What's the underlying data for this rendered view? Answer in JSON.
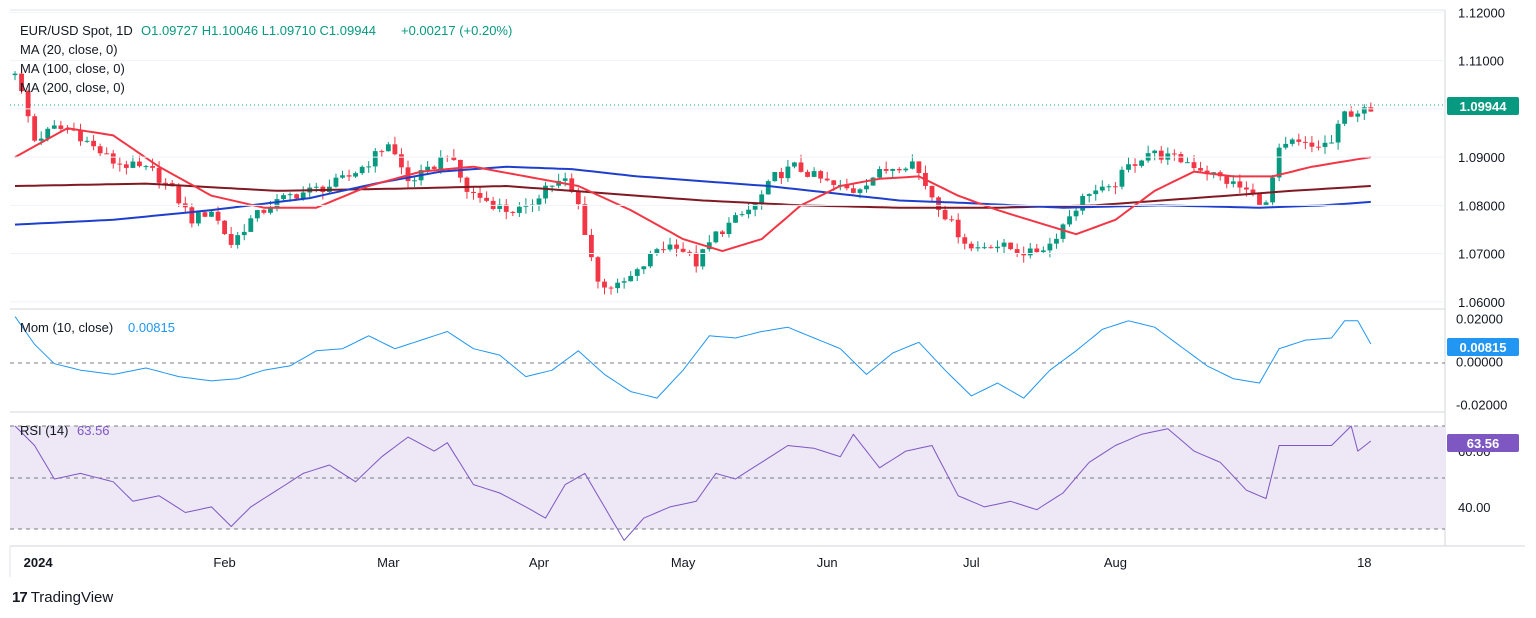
{
  "header": {
    "symbol": "EUR/USD Spot, 1D",
    "ohlc": "O1.09727  H1.10046  L1.09710  C1.09944",
    "change": "+0.00217 (+0.20%)",
    "ma20_label": "MA (20, close, 0)",
    "ma100_label": "MA (100, close, 0)",
    "ma200_label": "MA (200, close, 0)"
  },
  "momentum": {
    "label": "Mom (10, close)",
    "value": "0.00815"
  },
  "rsi": {
    "label": "RSI (14)",
    "value": "63.56"
  },
  "branding": {
    "logo_text": "TradingView",
    "logo_icon": "tradingview-logo-icon"
  },
  "colors": {
    "up": "#089981",
    "down": "#f23645",
    "ma20": "#f23645",
    "ma100": "#1e3fcc",
    "ma200": "#801922",
    "mom": "#2196f3",
    "rsi": "#7e57c2",
    "rsi_band": "#ede7f6",
    "last_price_tag": "#089981",
    "mom_tag": "#2196f3",
    "rsi_tag": "#7e57c2"
  },
  "chart_data": [
    {
      "type": "candlestick",
      "title": "EUR/USD Spot, 1D",
      "y_ticks": [
        "1.12000",
        "1.11000",
        "1.10000",
        "1.09000",
        "1.08000",
        "1.07000",
        "1.06000"
      ],
      "ylim": [
        1.0585,
        1.1205
      ],
      "x_ticks": [
        "2024",
        "Feb",
        "Mar",
        "Apr",
        "May",
        "Jun",
        "Jul",
        "Aug",
        "18"
      ],
      "last_price": "1.09944",
      "close_anchors": [
        [
          0,
          1.108
        ],
        [
          3,
          1.0935
        ],
        [
          6,
          1.096
        ],
        [
          9,
          1.0955
        ],
        [
          12,
          1.092
        ],
        [
          15,
          1.089
        ],
        [
          18,
          1.088
        ],
        [
          21,
          1.087
        ],
        [
          24,
          1.083
        ],
        [
          27,
          1.077
        ],
        [
          30,
          1.079
        ],
        [
          33,
          1.072
        ],
        [
          36,
          1.077
        ],
        [
          39,
          1.08
        ],
        [
          42,
          1.082
        ],
        [
          45,
          1.083
        ],
        [
          48,
          1.084
        ],
        [
          51,
          1.086
        ],
        [
          54,
          1.089
        ],
        [
          57,
          1.093
        ],
        [
          60,
          1.085
        ],
        [
          63,
          1.087
        ],
        [
          66,
          1.091
        ],
        [
          69,
          1.083
        ],
        [
          72,
          1.081
        ],
        [
          75,
          1.079
        ],
        [
          78,
          1.079
        ],
        [
          81,
          1.084
        ],
        [
          84,
          1.085
        ],
        [
          86,
          1.08
        ],
        [
          89,
          1.064
        ],
        [
          92,
          1.063
        ],
        [
          95,
          1.066
        ],
        [
          98,
          1.071
        ],
        [
          101,
          1.072
        ],
        [
          104,
          1.068
        ],
        [
          107,
          1.074
        ],
        [
          110,
          1.077
        ],
        [
          113,
          1.08
        ],
        [
          116,
          1.086
        ],
        [
          119,
          1.088
        ],
        [
          122,
          1.086
        ],
        [
          125,
          1.084
        ],
        [
          128,
          1.083
        ],
        [
          131,
          1.086
        ],
        [
          134,
          1.088
        ],
        [
          137,
          1.089
        ],
        [
          140,
          1.082
        ],
        [
          143,
          1.076
        ],
        [
          146,
          1.071
        ],
        [
          149,
          1.072
        ],
        [
          152,
          1.071
        ],
        [
          155,
          1.07
        ],
        [
          158,
          1.072
        ],
        [
          161,
          1.078
        ],
        [
          164,
          1.083
        ],
        [
          167,
          1.083
        ],
        [
          170,
          1.088
        ],
        [
          173,
          1.091
        ],
        [
          176,
          1.09
        ],
        [
          179,
          1.089
        ],
        [
          182,
          1.087
        ],
        [
          185,
          1.085
        ],
        [
          188,
          1.083
        ],
        [
          191,
          1.08
        ],
        [
          193,
          1.091
        ],
        [
          195,
          1.093
        ],
        [
          198,
          1.092
        ],
        [
          201,
          1.093
        ],
        [
          203,
          1.099
        ],
        [
          205,
          1.0995
        ],
        [
          207,
          1.0994
        ]
      ],
      "ma_anchors": {
        "ma20": [
          [
            0,
            1.09
          ],
          [
            8,
            1.096
          ],
          [
            15,
            1.0945
          ],
          [
            22,
            1.088
          ],
          [
            30,
            1.082
          ],
          [
            38,
            1.0795
          ],
          [
            46,
            1.0795
          ],
          [
            54,
            1.084
          ],
          [
            62,
            1.087
          ],
          [
            70,
            1.088
          ],
          [
            78,
            1.086
          ],
          [
            86,
            1.084
          ],
          [
            94,
            1.079
          ],
          [
            102,
            1.073
          ],
          [
            108,
            1.0705
          ],
          [
            114,
            1.073
          ],
          [
            120,
            1.08
          ],
          [
            126,
            1.084
          ],
          [
            132,
            1.0855
          ],
          [
            138,
            1.086
          ],
          [
            144,
            1.082
          ],
          [
            150,
            1.079
          ],
          [
            156,
            1.0765
          ],
          [
            162,
            1.074
          ],
          [
            168,
            1.077
          ],
          [
            174,
            1.083
          ],
          [
            180,
            1.087
          ],
          [
            186,
            1.086
          ],
          [
            192,
            1.086
          ],
          [
            198,
            1.088
          ],
          [
            207,
            1.09
          ]
        ],
        "ma100": [
          [
            0,
            1.076
          ],
          [
            15,
            1.077
          ],
          [
            30,
            1.079
          ],
          [
            45,
            1.0815
          ],
          [
            55,
            1.0845
          ],
          [
            65,
            1.087
          ],
          [
            75,
            1.088
          ],
          [
            85,
            1.0875
          ],
          [
            95,
            1.086
          ],
          [
            105,
            1.085
          ],
          [
            115,
            1.084
          ],
          [
            125,
            1.0825
          ],
          [
            135,
            1.081
          ],
          [
            145,
            1.0805
          ],
          [
            160,
            1.0795
          ],
          [
            175,
            1.08
          ],
          [
            190,
            1.0795
          ],
          [
            200,
            1.08
          ],
          [
            207,
            1.0807
          ]
        ],
        "ma200": [
          [
            0,
            1.084
          ],
          [
            20,
            1.0845
          ],
          [
            40,
            1.083
          ],
          [
            60,
            1.0835
          ],
          [
            75,
            1.084
          ],
          [
            90,
            1.0825
          ],
          [
            105,
            1.081
          ],
          [
            120,
            1.08
          ],
          [
            135,
            1.0795
          ],
          [
            150,
            1.0795
          ],
          [
            165,
            1.08
          ],
          [
            180,
            1.0815
          ],
          [
            195,
            1.083
          ],
          [
            207,
            1.084
          ]
        ]
      }
    },
    {
      "type": "line",
      "title": "Mom (10, close)",
      "y_ticks": [
        "0.02000",
        "0.00000",
        "-0.02000"
      ],
      "ylim": [
        -0.0235,
        0.0245
      ],
      "last_value": "0.00815",
      "anchors": [
        [
          0,
          0.021
        ],
        [
          3,
          0.008
        ],
        [
          6,
          -0.001
        ],
        [
          10,
          -0.004
        ],
        [
          15,
          -0.006
        ],
        [
          20,
          -0.003
        ],
        [
          25,
          -0.007
        ],
        [
          30,
          -0.009
        ],
        [
          34,
          -0.008
        ],
        [
          38,
          -0.004
        ],
        [
          42,
          -0.002
        ],
        [
          46,
          0.005
        ],
        [
          50,
          0.006
        ],
        [
          54,
          0.012
        ],
        [
          58,
          0.006
        ],
        [
          62,
          0.01
        ],
        [
          66,
          0.014
        ],
        [
          70,
          0.006
        ],
        [
          74,
          0.003
        ],
        [
          78,
          -0.007
        ],
        [
          82,
          -0.004
        ],
        [
          86,
          0.005
        ],
        [
          90,
          -0.006
        ],
        [
          94,
          -0.014
        ],
        [
          98,
          -0.017
        ],
        [
          102,
          -0.004
        ],
        [
          106,
          0.012
        ],
        [
          110,
          0.011
        ],
        [
          114,
          0.014
        ],
        [
          118,
          0.016
        ],
        [
          122,
          0.011
        ],
        [
          126,
          0.006
        ],
        [
          130,
          -0.006
        ],
        [
          134,
          0.004
        ],
        [
          138,
          0.009
        ],
        [
          142,
          -0.004
        ],
        [
          146,
          -0.016
        ],
        [
          150,
          -0.01
        ],
        [
          154,
          -0.017
        ],
        [
          158,
          -0.004
        ],
        [
          162,
          0.005
        ],
        [
          166,
          0.015
        ],
        [
          170,
          0.019
        ],
        [
          174,
          0.016
        ],
        [
          178,
          0.007
        ],
        [
          182,
          -0.002
        ],
        [
          186,
          -0.008
        ],
        [
          190,
          -0.01
        ],
        [
          193,
          0.006
        ],
        [
          197,
          0.01
        ],
        [
          201,
          0.011
        ],
        [
          203,
          0.019
        ],
        [
          205,
          0.019
        ],
        [
          207,
          0.0082
        ]
      ]
    },
    {
      "type": "line",
      "title": "RSI (14)",
      "y_ticks": [
        "60.00",
        "40.00"
      ],
      "ylim": [
        26.0,
        74.0
      ],
      "levels": [
        70,
        50,
        30
      ],
      "last_value": "63.56",
      "anchors": [
        [
          0,
          69.0
        ],
        [
          3,
          62.0
        ],
        [
          6,
          50.0
        ],
        [
          10,
          52.0
        ],
        [
          15,
          49.0
        ],
        [
          18,
          42.0
        ],
        [
          22,
          44.0
        ],
        [
          26,
          38.0
        ],
        [
          30,
          40.0
        ],
        [
          33,
          33.0
        ],
        [
          36,
          40.0
        ],
        [
          40,
          46.0
        ],
        [
          44,
          52.0
        ],
        [
          48,
          55.0
        ],
        [
          52,
          49.0
        ],
        [
          56,
          58.0
        ],
        [
          60,
          65.0
        ],
        [
          64,
          60.0
        ],
        [
          66,
          63.0
        ],
        [
          70,
          48.0
        ],
        [
          74,
          45.0
        ],
        [
          78,
          40.0
        ],
        [
          81,
          36.0
        ],
        [
          84,
          48.0
        ],
        [
          87,
          52.0
        ],
        [
          90,
          40.0
        ],
        [
          93,
          28.0
        ],
        [
          96,
          36.0
        ],
        [
          100,
          40.0
        ],
        [
          104,
          42.0
        ],
        [
          107,
          52.0
        ],
        [
          110,
          50.0
        ],
        [
          114,
          56.0
        ],
        [
          118,
          62.0
        ],
        [
          122,
          61.0
        ],
        [
          126,
          58.0
        ],
        [
          128,
          66.0
        ],
        [
          132,
          54.0
        ],
        [
          136,
          60.0
        ],
        [
          140,
          62.0
        ],
        [
          144,
          44.0
        ],
        [
          148,
          40.0
        ],
        [
          152,
          42.0
        ],
        [
          156,
          39.0
        ],
        [
          160,
          45.0
        ],
        [
          164,
          56.0
        ],
        [
          168,
          62.0
        ],
        [
          172,
          66.0
        ],
        [
          176,
          68.0
        ],
        [
          180,
          60.0
        ],
        [
          184,
          56.0
        ],
        [
          188,
          46.0
        ],
        [
          191,
          43.0
        ],
        [
          193,
          62.0
        ],
        [
          197,
          62.0
        ],
        [
          201,
          62.0
        ],
        [
          204,
          69.0
        ],
        [
          205,
          60.0
        ],
        [
          207,
          63.6
        ]
      ]
    }
  ]
}
